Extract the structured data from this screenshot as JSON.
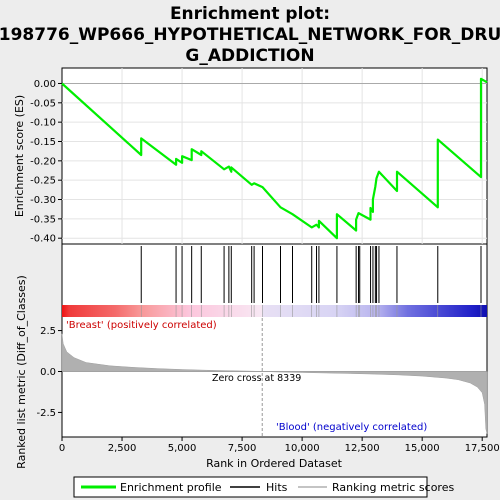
{
  "title_lines": [
    "Enrichment plot:",
    "198776_WP666_HYPOTHETICAL_NETWORK_FOR_DRU",
    "G_ADDICTION"
  ],
  "colors": {
    "enrichment_line": "#00ee00",
    "hits": "#000000",
    "ranking_fill": "#b0b0b0",
    "positive_label": "#cc0000",
    "negative_label": "#0000cc"
  },
  "chart_data": [
    {
      "type": "line",
      "name": "enrichment-profile",
      "ylabel": "Enrichment score (ES)",
      "xlim": [
        0,
        17700
      ],
      "ylim": [
        -0.415,
        0.04
      ],
      "yticks": [
        0.0,
        -0.05,
        -0.1,
        -0.15,
        -0.2,
        -0.25,
        -0.3,
        -0.35,
        -0.4
      ],
      "ytick_labels": [
        "0.00",
        "-0.05",
        "-0.10",
        "-0.15",
        "-0.20",
        "-0.25",
        "-0.30",
        "-0.35",
        "-0.40"
      ],
      "hits": [
        3300,
        4750,
        5000,
        5400,
        5800,
        6750,
        6950,
        7050,
        7900,
        8000,
        8350,
        9100,
        9600,
        10400,
        10600,
        10700,
        11450,
        12250,
        12350,
        12400,
        12850,
        12950,
        13050,
        13100,
        13200,
        13950,
        15650,
        17450
      ],
      "es": [
        0.0,
        -0.185,
        -0.142,
        -0.21,
        -0.195,
        -0.205,
        -0.188,
        -0.198,
        -0.17,
        -0.185,
        -0.175,
        -0.222,
        -0.215,
        -0.228,
        -0.217,
        -0.262,
        -0.258,
        -0.268,
        -0.32,
        -0.338,
        -0.372,
        -0.365,
        -0.372,
        -0.355,
        -0.4,
        -0.338,
        -0.38,
        -0.352,
        -0.335,
        -0.352,
        -0.322,
        -0.332,
        -0.3,
        -0.267,
        -0.245,
        -0.228,
        -0.278,
        -0.228,
        -0.32,
        -0.145,
        -0.242,
        0.012,
        0.003
      ],
      "es_x": [
        0,
        3300,
        3300,
        4750,
        4750,
        5000,
        5000,
        5400,
        5400,
        5800,
        5800,
        6750,
        6950,
        7050,
        7050,
        7900,
        8000,
        8350,
        9100,
        9600,
        10400,
        10600,
        10700,
        10700,
        11450,
        11450,
        12250,
        12250,
        12350,
        12850,
        12850,
        12950,
        12950,
        13050,
        13100,
        13200,
        13950,
        13950,
        15650,
        15650,
        17450,
        17450,
        17700
      ]
    },
    {
      "type": "area",
      "name": "ranked-list-metric",
      "xlabel": "Rank in Ordered Dataset",
      "ylabel": "Ranked list metric (Diff_of_Classes)",
      "xlim": [
        0,
        17700
      ],
      "ylim": [
        -4.0,
        4.0
      ],
      "xticks": [
        0,
        2500,
        5000,
        7500,
        10000,
        12500,
        15000,
        17500
      ],
      "xtick_labels": [
        "0",
        "2,500",
        "5,000",
        "7,500",
        "10,000",
        "12,500",
        "15,000",
        "17,500"
      ],
      "yticks": [
        2.5,
        0.0,
        -2.5
      ],
      "ytick_labels": [
        "2.5",
        "0.0",
        "-2.5"
      ],
      "x": [
        0,
        50,
        200,
        500,
        1000,
        2000,
        3000,
        4000,
        5000,
        6000,
        7000,
        8000,
        8339,
        9000,
        10000,
        11000,
        12000,
        13000,
        14000,
        15000,
        16000,
        16500,
        17000,
        17300,
        17500,
        17600,
        17650,
        17700
      ],
      "values": [
        2.3,
        1.7,
        1.2,
        0.85,
        0.55,
        0.35,
        0.25,
        0.18,
        0.12,
        0.08,
        0.05,
        0.02,
        0.0,
        -0.03,
        -0.06,
        -0.09,
        -0.12,
        -0.16,
        -0.21,
        -0.28,
        -0.4,
        -0.5,
        -0.7,
        -0.95,
        -1.3,
        -2.0,
        -3.5,
        -3.8
      ],
      "zero_cross_label": "Zero cross at 8339",
      "zero_cross": 8339,
      "positive_label": "'Breast' (positively correlated)",
      "negative_label": "'Blood' (negatively correlated)"
    }
  ],
  "legend": {
    "items": [
      {
        "label": "Enrichment profile",
        "color": "#00ee00"
      },
      {
        "label": "Hits",
        "color": "#000000"
      },
      {
        "label": "Ranking metric scores",
        "color": "#b0b0b0"
      }
    ]
  }
}
